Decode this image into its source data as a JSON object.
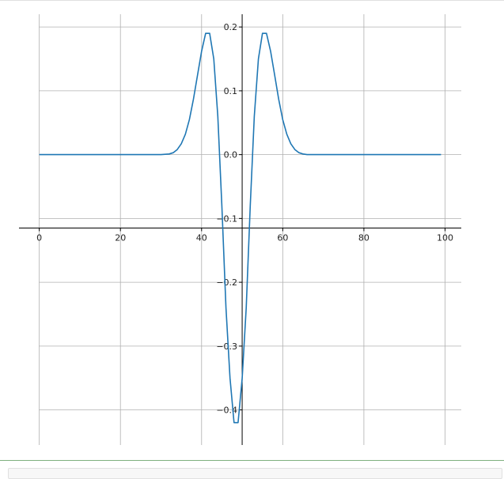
{
  "chart_data": {
    "type": "line",
    "title": "",
    "xlabel": "",
    "ylabel": "",
    "xlim": [
      -5,
      104
    ],
    "ylim": [
      -0.455,
      0.22
    ],
    "grid": true,
    "spines": "centered",
    "xticks": [
      0,
      20,
      40,
      60,
      80,
      100
    ],
    "xtick_labels": [
      "0",
      "20",
      "40",
      "60",
      "80",
      "100"
    ],
    "yticks": [
      0.2,
      0.1,
      0.0,
      -0.1,
      -0.2,
      -0.3,
      -0.4
    ],
    "ytick_labels": [
      "0.2",
      "0.1",
      "0.0",
      "−0.1",
      "−0.2",
      "−0.3",
      "−0.4"
    ],
    "series": [
      {
        "color": "#1f77b4",
        "x": [
          0,
          30,
          32,
          33,
          34,
          35,
          36,
          37,
          38,
          39,
          40,
          41,
          42,
          43,
          44,
          45,
          46,
          47,
          48,
          49,
          50,
          51,
          52,
          53,
          54,
          55,
          56,
          57,
          58,
          59,
          60,
          61,
          62,
          63,
          64,
          65,
          66,
          67,
          68,
          70,
          99
        ],
        "y": [
          0.0,
          0.0,
          0.001,
          0.003,
          0.008,
          0.017,
          0.032,
          0.055,
          0.087,
          0.125,
          0.162,
          0.19,
          0.19,
          0.15,
          0.06,
          -0.08,
          -0.24,
          -0.35,
          -0.42,
          -0.42,
          -0.35,
          -0.24,
          -0.08,
          0.06,
          0.15,
          0.19,
          0.19,
          0.162,
          0.125,
          0.087,
          0.055,
          0.032,
          0.017,
          0.008,
          0.003,
          0.001,
          0.0,
          0.0,
          0.0,
          0.0,
          0.0
        ]
      }
    ]
  }
}
